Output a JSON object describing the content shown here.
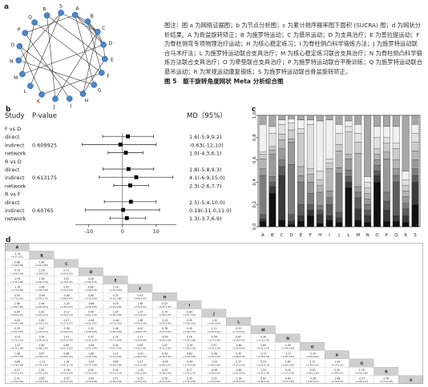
{
  "panel_labels": {
    "a": "a",
    "b": "b",
    "c": "c",
    "d": "d"
  },
  "network": {
    "nodes": [
      "A",
      "B",
      "C",
      "D",
      "E",
      "F",
      "G",
      "H",
      "I",
      "J",
      "K",
      "L",
      "M",
      "N",
      "O",
      "P",
      "Q",
      "R",
      "S"
    ],
    "node_color": "#4a86c8",
    "edges": [
      [
        "A",
        "B"
      ],
      [
        "A",
        "C"
      ],
      [
        "A",
        "D"
      ],
      [
        "A",
        "G"
      ],
      [
        "A",
        "P"
      ],
      [
        "B",
        "C"
      ],
      [
        "B",
        "D"
      ],
      [
        "B",
        "F"
      ],
      [
        "C",
        "D"
      ],
      [
        "C",
        "H"
      ],
      [
        "C",
        "S"
      ],
      [
        "D",
        "E"
      ],
      [
        "D",
        "M"
      ],
      [
        "E",
        "H"
      ],
      [
        "E",
        "R"
      ],
      [
        "F",
        "K"
      ],
      [
        "F",
        "Q"
      ],
      [
        "G",
        "N"
      ],
      [
        "H",
        "O"
      ],
      [
        "I",
        "P"
      ],
      [
        "J",
        "R"
      ],
      [
        "K",
        "O"
      ],
      [
        "L",
        "S"
      ],
      [
        "M",
        "Q"
      ],
      [
        "N",
        "S"
      ],
      [
        "C",
        "J"
      ]
    ]
  },
  "caption": {
    "text": "图注：图 a 为网络证据图；b 为节点分析图；c 为累计排序概率图下面积 (SUCRA) 图；d 为网状分析结果。A 为骨盆旋转矫正；B 为施罗特运动；C 为悬吊运动；D 为支具治疗；E 为普拉提运动；F 为脊柱侧弯专项物理治疗运动；H 为核心稳定练习；I 为脊柱侧凸科学锻炼方法；J 为施罗特运动联合马术疗法；L 为施罗特运动联合支具治疗；M 为核心稳定练习联合支具治疗；N 为脊柱侧凸科学锻炼方法联合支具治疗；O 为牵垫联合支具治疗；P 为施罗特运动联合平衡训练；Q 为施罗特运动联合悬吊运动；R 为常规运动康复锻炼；S 为施罗特运动联合骨盆旋转矫正。",
    "title": "图 5　躯干旋转角度网状 Meta 分析综合图"
  },
  "forest": {
    "header_study": "Study",
    "header_p": "P-value",
    "header_md": "MD（95%）",
    "x_ticks": [
      "-10",
      "0",
      "10"
    ],
    "xlim": [
      -14,
      16
    ],
    "groups": [
      {
        "title": "F vs D",
        "p": "0.609925",
        "rows": [
          {
            "label": "direct",
            "md": "1.6(-5.9,9.2)",
            "est": 1.6,
            "lo": -5.9,
            "hi": 9.2
          },
          {
            "label": "indirect",
            "md": "-0.63(-12,10)",
            "est": -0.63,
            "lo": -12,
            "hi": 10
          },
          {
            "label": "network",
            "md": "1.0(-4.3,6.1)",
            "est": 1.0,
            "lo": -4.3,
            "hi": 6.1
          }
        ]
      },
      {
        "title": "R vs D",
        "p": "0.613175",
        "rows": [
          {
            "label": "direct",
            "md": "1.8(-5.8,9.3)",
            "est": 1.8,
            "lo": -5.8,
            "hi": 9.3
          },
          {
            "label": "indirect",
            "md": "4.1(-6.9,15.0)",
            "est": 4.1,
            "lo": -6.9,
            "hi": 15.0
          },
          {
            "label": "network",
            "md": "2.3(-2.6,7.7)",
            "est": 2.3,
            "lo": -2.6,
            "hi": 7.7
          }
        ]
      },
      {
        "title": "R vs F",
        "p": "0.60765",
        "rows": [
          {
            "label": "direct",
            "md": "2.5(-5.4,10.0)",
            "est": 2.5,
            "lo": -5.4,
            "hi": 10.0
          },
          {
            "label": "indirect",
            "md": "0.19(-11.0,11.0)",
            "est": 0.19,
            "lo": -11.0,
            "hi": 11.0
          },
          {
            "label": "network",
            "md": "1.3(-3.7,6.9)",
            "est": 1.3,
            "lo": -3.7,
            "hi": 6.9
          }
        ]
      }
    ]
  },
  "chart_data": {
    "type": "bar",
    "categories": [
      "A",
      "B",
      "C",
      "D",
      "E",
      "F",
      "H",
      "I",
      "J",
      "L",
      "M",
      "N",
      "O",
      "P",
      "Q",
      "R",
      "S"
    ],
    "y_ticks": [
      "0.0",
      "0.2",
      "0.4",
      "0.6",
      "0.8",
      "1.0"
    ],
    "ylim": [
      0,
      1
    ],
    "stacks": [
      [
        0.05,
        0.02,
        0.04,
        0.35,
        0.06,
        0.09,
        0.04,
        0.02,
        0.25,
        0.08
      ],
      [
        0.3,
        0.06,
        0.04,
        0.05,
        0.2,
        0.04,
        0.03,
        0.12,
        0.06,
        0.1
      ],
      [
        0.06,
        0.4,
        0.08,
        0.06,
        0.1,
        0.08,
        0.05,
        0.09,
        0.04,
        0.04
      ],
      [
        0.02,
        0.03,
        0.06,
        0.45,
        0.2,
        0.03,
        0.08,
        0.06,
        0.04,
        0.03
      ],
      [
        0.05,
        0.05,
        0.1,
        0.2,
        0.06,
        0.08,
        0.3,
        0.04,
        0.08,
        0.04
      ],
      [
        0.1,
        0.05,
        0.05,
        0.1,
        0.1,
        0.07,
        0.05,
        0.4,
        0.04,
        0.04
      ],
      [
        0.03,
        0.08,
        0.04,
        0.04,
        0.12,
        0.06,
        0.05,
        0.08,
        0.45,
        0.05
      ],
      [
        0.06,
        0.04,
        0.1,
        0.06,
        0.06,
        0.2,
        0.05,
        0.04,
        0.35,
        0.04
      ],
      [
        0.04,
        0.04,
        0.05,
        0.35,
        0.05,
        0.15,
        0.06,
        0.1,
        0.08,
        0.08
      ],
      [
        0.35,
        0.05,
        0.05,
        0.06,
        0.1,
        0.04,
        0.2,
        0.05,
        0.05,
        0.05
      ],
      [
        0.06,
        0.1,
        0.1,
        0.05,
        0.05,
        0.3,
        0.1,
        0.08,
        0.08,
        0.08
      ],
      [
        0.04,
        0.06,
        0.05,
        0.05,
        0.05,
        0.05,
        0.05,
        0.05,
        0.05,
        0.55
      ],
      [
        0.4,
        0.06,
        0.04,
        0.05,
        0.05,
        0.05,
        0.05,
        0.1,
        0.1,
        0.1
      ],
      [
        0.05,
        0.1,
        0.08,
        0.08,
        0.3,
        0.06,
        0.08,
        0.05,
        0.1,
        0.1
      ],
      [
        0.05,
        0.05,
        0.3,
        0.06,
        0.06,
        0.08,
        0.1,
        0.05,
        0.15,
        0.1
      ],
      [
        0.04,
        0.06,
        0.06,
        0.05,
        0.06,
        0.05,
        0.05,
        0.05,
        0.08,
        0.5
      ],
      [
        0.2,
        0.2,
        0.06,
        0.06,
        0.08,
        0.08,
        0.08,
        0.08,
        0.08,
        0.08
      ]
    ],
    "grays": [
      "#111111",
      "#3a3a3a",
      "#5c5c5c",
      "#7d7d7d",
      "#9a9a9a",
      "#b5b5b5",
      "#cccccc",
      "#e0e0e0",
      "#f0f0f0",
      "#a6a6a6"
    ]
  },
  "league": {
    "order": [
      "A",
      "B",
      "C",
      "D",
      "E",
      "F",
      "H",
      "I",
      "J",
      "L",
      "M",
      "N",
      "O",
      "P",
      "Q",
      "R",
      "S"
    ],
    "cells": [
      [
        "-1.74\n(-4.27,-0.5)"
      ],
      [
        "0.88\n(-0.96,2.86)",
        "1.60\n(-0.46,3.89)"
      ],
      [
        "0.79\n(-3.66,3.56)",
        "1.28\n(-2.89,5.33)",
        "0.71\n(-0.54,1.60)"
      ],
      [
        "-0.76\n(-3.31,5.80)",
        "1.38\n(-0.60,3.70)",
        "1.02\n(-0.76,4.05)",
        "0.28\n(-5.54,3.47)"
      ],
      [
        "-1.76\n(-3.10,3.69)",
        "0.36\n(-1.20,2.90)",
        "0.95\n(-0.51,4.50)",
        "0.60\n(-3.98,4.93)",
        "2.78\n(-1.35,4.89)"
      ],
      [
        "0.55\n(-2.70,5.62)",
        "-0.60\n(-3.78,3.70)",
        "-0.46\n(-3.80,4.05)",
        "0.80\n(-4.30,3.60)",
        "0.74\n(-4.32,3.80)",
        "0.97\n(-4.66,4.03)"
      ],
      [
        "1.46\n(-3.82,3.64)",
        "1.96\n(-0.40,4.63)",
        "-1.25\n(-4.30,1.60)",
        "-0.66\n(-4.48,3.80)",
        "0.78\n(-2.62,4.00)",
        "1.36\n(-2.70,4.53)",
        "0.52\n(-3.21,4.45)"
      ],
      [
        "0.85\n(-4.69,2.29)",
        "1.81\n(-2.45,4.57)",
        "-0.12\n(-2.43,3.74)",
        "0.56\n(-4.61,3.23)",
        "1.05\n(-4.00,4.16)",
        "1.37\n(-3.71,4.43)",
        "0.74\n(-1.60,3.70)",
        "-0.80\n(-3.97,3.42)"
      ],
      [
        "0.43\n(-4.44,1.93)",
        "1.83\n(-2.61,4.15)",
        "0.57\n(-2.17,3.07)",
        "-0.58\n(-4.81,3.67)",
        "-0.46\n(-4.13,3.61)",
        "1.38\n(-4.25,4.58)",
        "-1.22\n(-3.54,3.40)",
        "0.39\n(-3.56,3.61)",
        "-1.32\n(-4.91,3.64)"
      ],
      [
        "0.35\n(-2.61,4.55)",
        "0.47\n(-1.97,3.01)",
        "-2.36\n(-4.50,0.54)",
        "2.21\n(-3.38,4.64)",
        "1.06\n(-4.62,3.63)",
        "-0.47\n(-3.62,4.33)",
        "0.78\n(-3.57,4.31)",
        "0.35\n(-4.46,3.51)",
        "2.11\n(-0.45,5.52)",
        "0.22\n(-3.73,3.41)"
      ],
      [
        "-0.23\n(-4.71,3.52)",
        "0.34\n(-2.60,4.51)",
        "1.01\n(-4.43,3.44)",
        "0.37\n(-3.50,3.35)",
        "1.31\n(-4.71,3.64)",
        "1.27\n(-3.43,4.66)",
        "-0.90\n(-3.43,3.58)",
        "0.18\n(-4.05,3.66)",
        "-0.58\n(-3.57,3.48)",
        "0.87\n(-3.06,4.00)",
        "0.38\n(-3.10,3.52)"
      ],
      [
        "-1.21\n(-4.74,1.50)",
        "1.60\n(-3.86,3.30)",
        "0.86\n(-4.61,3.60)",
        "-0.46\n(-3.53,3.40)",
        "0.34\n(-4.47,4.10)",
        "0.80\n(-4.20,3.45)",
        "1.47\n(-4.35,3.93)",
        "-1.39\n(-3.60,3.23)",
        "0.57\n(-4.14,3.39)",
        "-0.64\n(-3.29,4.04)",
        "1.69\n(-4.53,3.53)",
        "1.39\n(-3.44,4.09)"
      ],
      [
        "1.08\n(-3.52,4.55)",
        "0.67\n(-4.09,3.27)",
        "0.48\n(-4.58,4.42)",
        "1.08\n(-3.05,3.54)",
        "1.15\n(-4.14,3.63)",
        "-0.22\n(-4.46,3.50)",
        "0.99\n(-4.18,3.45)",
        "0.83\n(-3.18,3.58)",
        "-0.38\n(-3.79,3.44)",
        "0.35\n(-4.46,4.18)",
        "-0.72\n(-3.29,3.52)",
        "-1.21\n(-4.45,3.54)",
        "-0.74\n(-4.09,3.64)"
      ],
      [
        "0.88\n(-3.76,4.36)",
        "-1.13\n(-4.04,3.43)",
        "1.18\n(-3.87,3.24)",
        "-0.33\n(-3.77,4.59)",
        "0.66\n(-4.56,3.46)",
        "0.91\n(-4.32,3.28)",
        "-0.54\n(-3.46,3.37)",
        "-0.44\n(-3.79,4.58)",
        "-1.20\n(-3.44,3.48)",
        "0.37\n(-4.25,3.50)",
        "0.24\n(-3.32,4.23)",
        "1.80\n(-4.46,3.44)",
        "2.11\n(-3.34,3.57)",
        "1.34\n(-4.14,3.52)"
      ],
      [
        "0.27\n(-4.47,3.57)",
        "1.30\n(-3.52,3.32)",
        "-0.78\n(-4.51,4.00)",
        "0.41\n(-3.55,3.41)",
        "0.34\n(-4.41,4.13)",
        "-1.32\n(-3.81,3.44)",
        "0.43\n(-4.28,3.30)",
        "0.77\n(-3.79,3.71)",
        "-0.98\n(-4.49,3.55)",
        "-0.82\n(-3.51,4.03)",
        "1.33\n(-4.39,3.24)",
        "0.29\n(-3.37,3.59)",
        "-0.87\n(-4.63,3.39)",
        "0.32\n(-3.44,4.57)",
        "1.78\n(-4.52,3.45)"
      ],
      [
        "2.41\n(-4.32,3.49)",
        "0.85\n(-3.44,4.33)",
        "-0.27\n(-4.41,3.32)",
        "-0.54\n(-3.50,3.48)",
        "0.72\n(-4.56,4.19)",
        "-0.55\n(-3.40,3.52)",
        "0.55\n(-4.27,3.61)",
        "0.39\n(-3.33,4.55)",
        "0.16\n(-4.12,3.56)",
        "-1.00\n(-3.55,3.29)",
        "0.61\n(-4.45,4.37)",
        "-0.64\n(-3.31,3.58)",
        "-0.36\n(-4.26,3.57)",
        "1.48\n(-3.44,4.07)",
        "-0.27\n(-4.58,3.27)",
        "0.78\n(-3.72,4.18)"
      ]
    ]
  }
}
